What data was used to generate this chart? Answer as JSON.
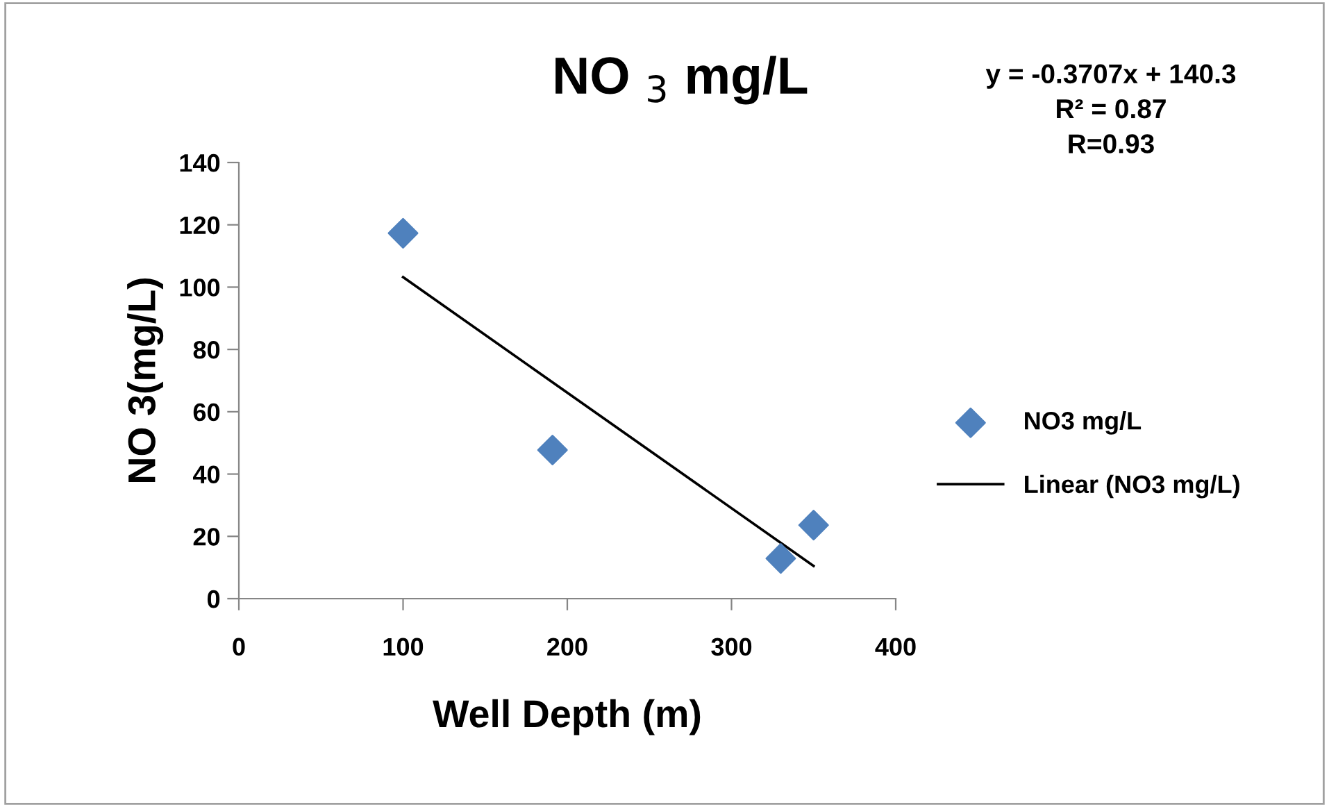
{
  "chart_data": {
    "type": "scatter",
    "title": "NO $_{3}$ mg/L",
    "xlabel": "Well Depth (m)",
    "ylabel": "NO 3(mg/L)",
    "annotations": [
      "y = -0.3707x + 140.3\nR² = 0.87\nR=0.93"
    ],
    "series": [
      {
        "name": "NO3 mg/L",
        "color": "#4f81bd",
        "marker": "diamond",
        "x": [
          100,
          191,
          330,
          350
        ],
        "values": [
          117.3,
          47.7,
          12.9,
          23.6
        ]
      },
      {
        "name": "Linear (NO3 mg/L)",
        "type": "line",
        "color": "#000000",
        "marker": "none",
        "line_style": "solid",
        "x": [
          100,
          350
        ],
        "values": [
          103.2,
          10.5
        ]
      }
    ],
    "xlim": [
      0,
      400
    ],
    "xticks": [
      0,
      100,
      200,
      300,
      400
    ],
    "ylim": [
      0,
      140
    ],
    "yticks": [
      0,
      20,
      40,
      60,
      80,
      100,
      120,
      140
    ],
    "grid": false,
    "legend": "right"
  }
}
